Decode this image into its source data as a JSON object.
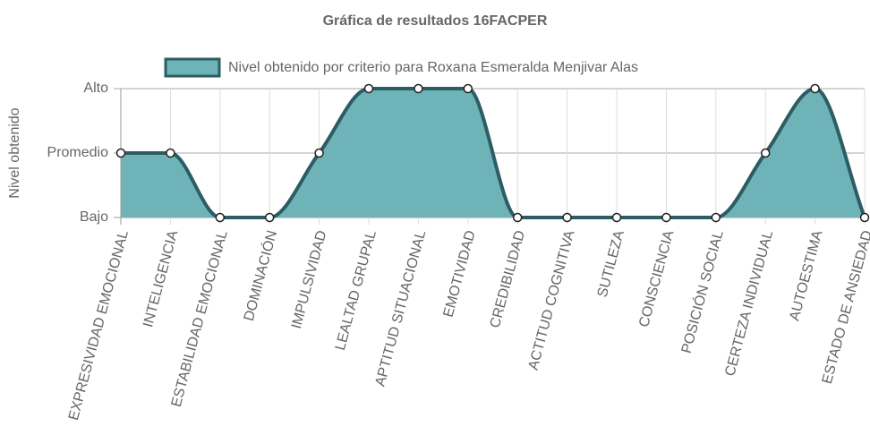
{
  "chart_data": {
    "type": "line",
    "title": "Gráfica de resultados 16FACPER",
    "y_label": "Nivel obtenido",
    "categories": [
      "EXPRESIVIDAD EMOCIONAL",
      "INTELIGENCIA",
      "ESTABILIDAD EMOCIONAL",
      "DOMINACIÓN",
      "IMPULSIVIDAD",
      "LEALTAD GRUPAL",
      "APTITUD SITUACIONAL",
      "EMOTIVIDAD",
      "CREDIBILIDAD",
      "ACTITUD COGNITIVA",
      "SUTILEZA",
      "CONSCIENCIA",
      "POSICIÓN SOCIAL",
      "CERTEZA INDIVIDUAL",
      "AUTOESTIMA",
      "ESTADO DE ANSIEDAD"
    ],
    "series": [
      {
        "name": "Nivel obtenido por criterio para Roxana Esmeralda Menjivar Alas",
        "color": "#2b5d63",
        "fill": "#6db3b7",
        "values": [
          1,
          1,
          0,
          0,
          1,
          2,
          2,
          2,
          0,
          0,
          0,
          0,
          0,
          1,
          2,
          0
        ]
      }
    ],
    "ylim": [
      0,
      2
    ],
    "yticks": [
      {
        "value": 0,
        "label": "Bajo"
      },
      {
        "value": 1,
        "label": "Promedio"
      },
      {
        "value": 2,
        "label": "Alto"
      }
    ],
    "grid": true
  }
}
